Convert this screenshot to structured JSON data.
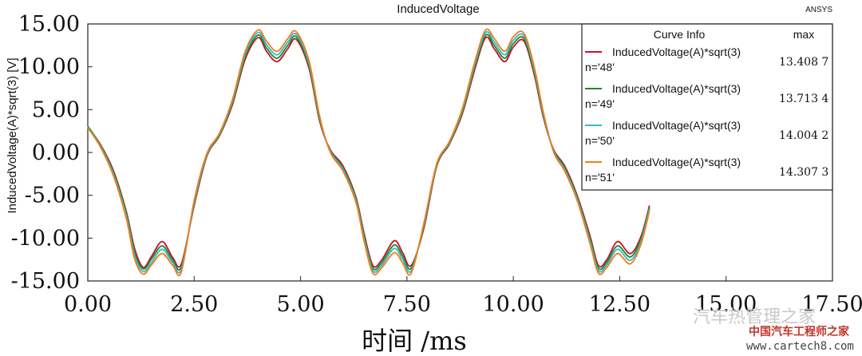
{
  "chart_data": {
    "type": "line",
    "title": "InducedVoltage",
    "vendor": "ANSYS",
    "xlabel": "时间 /ms",
    "ylabel": "InducedVoltage(A)*sqrt(3) [V]",
    "xlim": [
      0,
      17.5
    ],
    "ylim": [
      -15,
      15
    ],
    "x_ticks": [
      "0.00",
      "2.50",
      "5.00",
      "7.50",
      "10.00",
      "12.50",
      "15.00",
      "17.50"
    ],
    "y_ticks": [
      "15.00",
      "10.00",
      "5.00",
      "0.00",
      "-5.00",
      "-10.00",
      "-15.00"
    ],
    "grid": false,
    "legend_position": "top-right",
    "legend_header": {
      "name": "Curve Info",
      "value": "max"
    },
    "x": [
      0.0,
      0.3,
      0.6,
      0.9,
      1.1,
      1.3,
      1.5,
      1.75,
      2.0,
      2.2,
      2.5,
      2.8,
      3.1,
      3.4,
      3.7,
      4.0,
      4.2,
      4.45,
      4.7,
      4.9,
      5.2,
      5.45,
      5.7,
      6.0,
      6.3,
      6.5,
      6.7,
      6.9,
      7.2,
      7.4,
      7.6,
      7.9,
      8.2,
      8.5,
      8.8,
      9.1,
      9.35,
      9.55,
      9.8,
      10.0,
      10.25,
      10.5,
      10.7,
      10.95,
      11.2,
      11.5,
      11.8,
      12.0,
      12.2,
      12.45,
      12.75,
      13.0,
      13.2
    ],
    "series": [
      {
        "name": "InducedVoltage(A)*sqrt(3)",
        "n": "n='48'",
        "max": "13.408 7",
        "color": "#c8102e",
        "values": [
          3.0,
          0.9,
          -2.1,
          -6.8,
          -11.2,
          -13.4,
          -12.1,
          -10.4,
          -12.3,
          -13.0,
          -6.2,
          -0.4,
          2.0,
          5.6,
          10.9,
          13.4,
          11.8,
          10.6,
          12.1,
          13.2,
          9.8,
          3.6,
          0.3,
          -1.6,
          -5.2,
          -9.6,
          -13.2,
          -12.6,
          -10.3,
          -11.7,
          -13.2,
          -8.8,
          -1.6,
          1.0,
          4.5,
          9.8,
          13.4,
          12.1,
          10.6,
          12.3,
          13.0,
          8.9,
          4.2,
          0.3,
          -1.5,
          -5.0,
          -9.7,
          -13.2,
          -12.5,
          -10.4,
          -11.8,
          -9.8,
          -6.2
        ]
      },
      {
        "name": "InducedVoltage(A)*sqrt(3)",
        "n": "n='49'",
        "max": "13.713 4",
        "color": "#1a8a2e",
        "values": [
          3.1,
          0.8,
          -2.3,
          -7.0,
          -11.6,
          -13.6,
          -12.4,
          -10.9,
          -12.6,
          -13.3,
          -6.0,
          -0.3,
          2.1,
          5.8,
          11.2,
          13.7,
          12.2,
          11.0,
          12.5,
          13.5,
          10.1,
          3.8,
          0.2,
          -1.8,
          -5.4,
          -9.9,
          -13.5,
          -12.9,
          -10.8,
          -12.1,
          -13.5,
          -8.6,
          -1.5,
          1.1,
          4.7,
          10.1,
          13.7,
          12.5,
          11.0,
          12.7,
          13.3,
          9.2,
          4.4,
          0.2,
          -1.7,
          -5.2,
          -10.0,
          -13.5,
          -12.8,
          -10.9,
          -12.2,
          -10.1,
          -6.4
        ]
      },
      {
        "name": "InducedVoltage(A)*sqrt(3)",
        "n": "n='50'",
        "max": "14.004 2",
        "color": "#38b8c8",
        "values": [
          3.0,
          0.7,
          -2.5,
          -7.3,
          -12.0,
          -13.9,
          -12.8,
          -11.3,
          -12.9,
          -13.6,
          -5.8,
          -0.2,
          2.2,
          6.0,
          11.5,
          14.0,
          12.6,
          11.4,
          12.9,
          13.8,
          10.4,
          4.0,
          0.1,
          -2.0,
          -5.6,
          -10.2,
          -13.8,
          -13.2,
          -11.2,
          -12.5,
          -13.8,
          -8.4,
          -1.4,
          1.2,
          4.9,
          10.4,
          14.0,
          12.9,
          11.4,
          13.1,
          13.6,
          9.5,
          4.6,
          0.1,
          -1.9,
          -5.4,
          -10.3,
          -13.8,
          -13.1,
          -11.3,
          -12.6,
          -10.4,
          -6.6
        ]
      },
      {
        "name": "InducedVoltage(A)*sqrt(3)",
        "n": "n='51'",
        "max": "14.307 3",
        "color": "#f07d1a",
        "values": [
          2.9,
          0.6,
          -2.7,
          -7.6,
          -12.4,
          -14.2,
          -13.1,
          -11.8,
          -13.2,
          -13.9,
          -5.6,
          -0.1,
          2.3,
          6.2,
          11.8,
          14.3,
          13.0,
          11.8,
          13.3,
          14.1,
          10.7,
          4.2,
          0.0,
          -2.2,
          -5.8,
          -10.5,
          -14.1,
          -13.5,
          -11.7,
          -12.9,
          -14.1,
          -8.2,
          -1.3,
          1.3,
          5.1,
          10.7,
          14.3,
          13.3,
          11.8,
          13.5,
          13.9,
          9.8,
          4.8,
          0.0,
          -2.1,
          -5.6,
          -10.6,
          -14.1,
          -13.4,
          -11.8,
          -13.0,
          -10.7,
          -6.8
        ]
      }
    ]
  },
  "watermark": {
    "line1": "汽车热管理之家",
    "line2": "中国汽车工程师之家",
    "line3": "www.cartech8.com"
  }
}
